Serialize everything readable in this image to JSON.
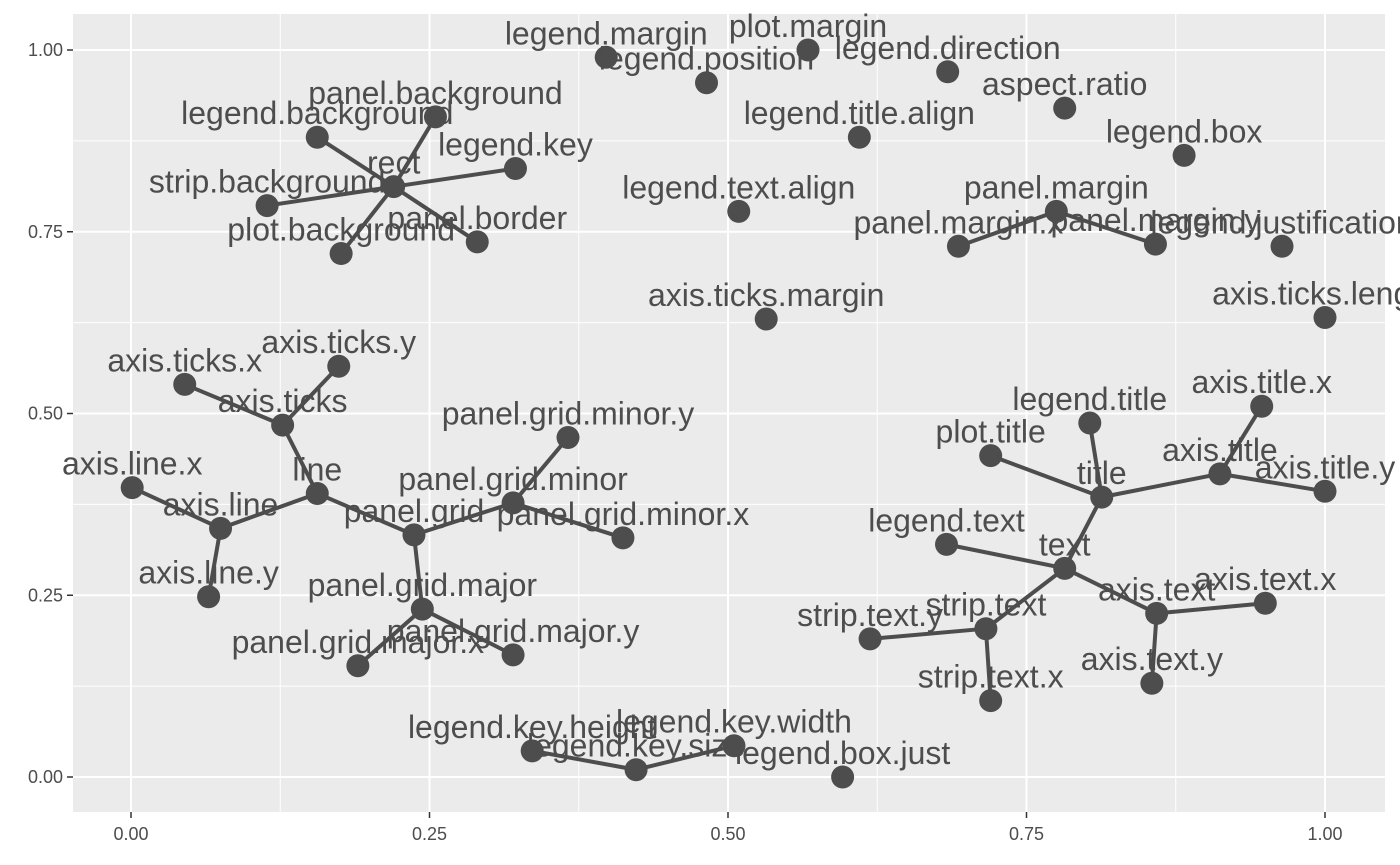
{
  "chart_data": {
    "type": "scatter",
    "title": "",
    "xlabel": "",
    "ylabel": "",
    "xlim": [
      -0.05,
      1.05
    ],
    "ylim": [
      -0.05,
      1.05
    ],
    "x_ticks": [
      0,
      0.25,
      0.5,
      0.75,
      1
    ],
    "y_ticks": [
      0,
      0.25,
      0.5,
      0.75,
      1
    ],
    "x_tick_labels": [
      "0.00",
      "0.25",
      "0.50",
      "0.75",
      "1.00"
    ],
    "y_tick_labels": [
      "0.00",
      "0.25",
      "0.50",
      "0.75",
      "1.00"
    ],
    "grid": true,
    "colors": {
      "panel": "#ebebeb",
      "grid": "#ffffff",
      "point": "#4d4d4d",
      "edge": "#4d4d4d",
      "text": "#4d4d4d"
    },
    "nodes": [
      {
        "id": "legend.margin",
        "x": 0.398,
        "y": 0.99
      },
      {
        "id": "plot.margin",
        "x": 0.567,
        "y": 1.0
      },
      {
        "id": "legend.position",
        "x": 0.482,
        "y": 0.955
      },
      {
        "id": "legend.direction",
        "x": 0.684,
        "y": 0.97
      },
      {
        "id": "aspect.ratio",
        "x": 0.782,
        "y": 0.92
      },
      {
        "id": "legend.title.align",
        "x": 0.61,
        "y": 0.88
      },
      {
        "id": "legend.box",
        "x": 0.882,
        "y": 0.855
      },
      {
        "id": "legend.text.align",
        "x": 0.509,
        "y": 0.778
      },
      {
        "id": "panel.margin",
        "x": 0.775,
        "y": 0.778
      },
      {
        "id": "panel.margin.x",
        "x": 0.693,
        "y": 0.73
      },
      {
        "id": "panel.margin.y",
        "x": 0.858,
        "y": 0.733
      },
      {
        "id": "legend.justification",
        "x": 0.964,
        "y": 0.73
      },
      {
        "id": "axis.ticks.margin",
        "x": 0.532,
        "y": 0.63
      },
      {
        "id": "axis.ticks.length",
        "x": 1.0,
        "y": 0.632
      },
      {
        "id": "rect",
        "x": 0.22,
        "y": 0.812
      },
      {
        "id": "panel.background",
        "x": 0.255,
        "y": 0.908
      },
      {
        "id": "legend.background",
        "x": 0.156,
        "y": 0.88
      },
      {
        "id": "legend.key",
        "x": 0.322,
        "y": 0.837
      },
      {
        "id": "strip.background",
        "x": 0.114,
        "y": 0.786
      },
      {
        "id": "panel.border",
        "x": 0.29,
        "y": 0.736
      },
      {
        "id": "plot.background",
        "x": 0.176,
        "y": 0.72
      },
      {
        "id": "axis.ticks.y",
        "x": 0.174,
        "y": 0.565
      },
      {
        "id": "axis.ticks.x",
        "x": 0.045,
        "y": 0.54
      },
      {
        "id": "axis.ticks",
        "x": 0.127,
        "y": 0.484
      },
      {
        "id": "line",
        "x": 0.156,
        "y": 0.39
      },
      {
        "id": "axis.line.x",
        "x": 0.001,
        "y": 0.398
      },
      {
        "id": "axis.line",
        "x": 0.075,
        "y": 0.342
      },
      {
        "id": "axis.line.y",
        "x": 0.065,
        "y": 0.248
      },
      {
        "id": "panel.grid",
        "x": 0.237,
        "y": 0.333
      },
      {
        "id": "panel.grid.minor.y",
        "x": 0.366,
        "y": 0.467
      },
      {
        "id": "panel.grid.minor",
        "x": 0.32,
        "y": 0.377
      },
      {
        "id": "panel.grid.minor.x",
        "x": 0.412,
        "y": 0.329
      },
      {
        "id": "panel.grid.major",
        "x": 0.244,
        "y": 0.231
      },
      {
        "id": "panel.grid.major.x",
        "x": 0.19,
        "y": 0.153
      },
      {
        "id": "panel.grid.major.y",
        "x": 0.32,
        "y": 0.168
      },
      {
        "id": "legend.key.height",
        "x": 0.336,
        "y": 0.036
      },
      {
        "id": "legend.key.size",
        "x": 0.423,
        "y": 0.01
      },
      {
        "id": "legend.key.width",
        "x": 0.505,
        "y": 0.043
      },
      {
        "id": "legend.box.just",
        "x": 0.596,
        "y": 0.0
      },
      {
        "id": "legend.title",
        "x": 0.803,
        "y": 0.487
      },
      {
        "id": "axis.title.x",
        "x": 0.947,
        "y": 0.51
      },
      {
        "id": "plot.title",
        "x": 0.72,
        "y": 0.442
      },
      {
        "id": "title",
        "x": 0.813,
        "y": 0.385
      },
      {
        "id": "axis.title",
        "x": 0.912,
        "y": 0.417
      },
      {
        "id": "axis.title.y",
        "x": 1.0,
        "y": 0.393
      },
      {
        "id": "legend.text",
        "x": 0.683,
        "y": 0.32
      },
      {
        "id": "text",
        "x": 0.782,
        "y": 0.287
      },
      {
        "id": "axis.text",
        "x": 0.859,
        "y": 0.225
      },
      {
        "id": "axis.text.x",
        "x": 0.95,
        "y": 0.239
      },
      {
        "id": "strip.text",
        "x": 0.716,
        "y": 0.204
      },
      {
        "id": "strip.text.y",
        "x": 0.619,
        "y": 0.19
      },
      {
        "id": "strip.text.x",
        "x": 0.72,
        "y": 0.105
      },
      {
        "id": "axis.text.y",
        "x": 0.855,
        "y": 0.129
      }
    ],
    "edges": [
      [
        "rect",
        "panel.background"
      ],
      [
        "rect",
        "legend.background"
      ],
      [
        "rect",
        "legend.key"
      ],
      [
        "rect",
        "strip.background"
      ],
      [
        "rect",
        "panel.border"
      ],
      [
        "rect",
        "plot.background"
      ],
      [
        "panel.margin",
        "panel.margin.x"
      ],
      [
        "panel.margin",
        "panel.margin.y"
      ],
      [
        "axis.ticks",
        "axis.ticks.x"
      ],
      [
        "axis.ticks",
        "axis.ticks.y"
      ],
      [
        "line",
        "axis.ticks"
      ],
      [
        "line",
        "axis.line"
      ],
      [
        "axis.line",
        "axis.line.x"
      ],
      [
        "axis.line",
        "axis.line.y"
      ],
      [
        "line",
        "panel.grid"
      ],
      [
        "panel.grid",
        "panel.grid.minor"
      ],
      [
        "panel.grid.minor",
        "panel.grid.minor.y"
      ],
      [
        "panel.grid.minor",
        "panel.grid.minor.x"
      ],
      [
        "panel.grid",
        "panel.grid.major"
      ],
      [
        "panel.grid.major",
        "panel.grid.major.x"
      ],
      [
        "panel.grid.major",
        "panel.grid.major.y"
      ],
      [
        "legend.key.size",
        "legend.key.height"
      ],
      [
        "legend.key.size",
        "legend.key.width"
      ],
      [
        "title",
        "legend.title"
      ],
      [
        "title",
        "plot.title"
      ],
      [
        "title",
        "axis.title"
      ],
      [
        "axis.title",
        "axis.title.x"
      ],
      [
        "axis.title",
        "axis.title.y"
      ],
      [
        "title",
        "text"
      ],
      [
        "text",
        "legend.text"
      ],
      [
        "text",
        "axis.text"
      ],
      [
        "axis.text",
        "axis.text.x"
      ],
      [
        "axis.text",
        "axis.text.y"
      ],
      [
        "text",
        "strip.text"
      ],
      [
        "strip.text",
        "strip.text.y"
      ],
      [
        "strip.text",
        "strip.text.x"
      ]
    ]
  }
}
